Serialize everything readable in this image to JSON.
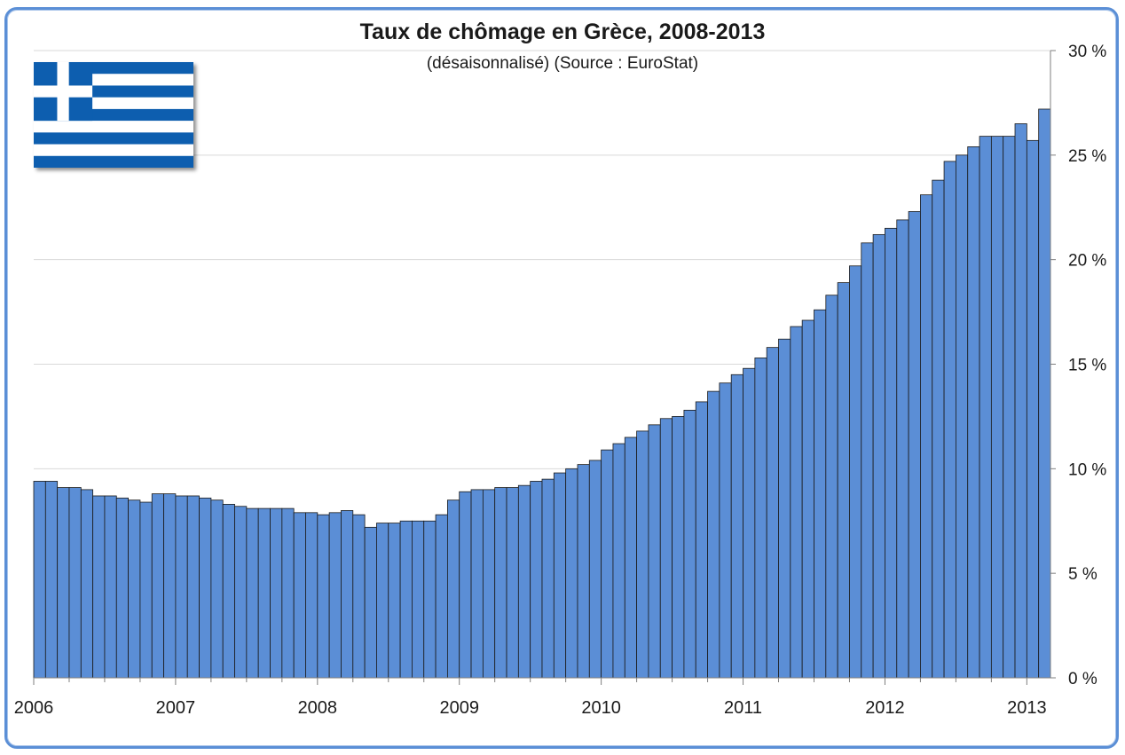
{
  "chart_data": {
    "type": "bar",
    "title": "Taux de chômage en Grèce, 2008-2013",
    "subtitle": "(désaisonnalisé) (Source : EuroStat)",
    "xlabel": "",
    "ylabel": "",
    "ylim": [
      0,
      30
    ],
    "y_ticks": [
      "0 %",
      "5 %",
      "10 %",
      "15 %",
      "20 %",
      "25 %",
      "30 %"
    ],
    "y_tick_values": [
      0,
      5,
      10,
      15,
      20,
      25,
      30
    ],
    "x_ticks": [
      "2006",
      "2007",
      "2008",
      "2009",
      "2010",
      "2011",
      "2012",
      "2013"
    ],
    "y_axis_side": "right",
    "grid": "horizontal",
    "bar_color": "#5b8ed6",
    "values": [
      9.4,
      9.4,
      9.1,
      9.1,
      9.0,
      8.7,
      8.7,
      8.6,
      8.5,
      8.4,
      8.8,
      8.8,
      8.7,
      8.7,
      8.6,
      8.5,
      8.3,
      8.2,
      8.1,
      8.1,
      8.1,
      8.1,
      7.9,
      7.9,
      7.8,
      7.9,
      8.0,
      7.8,
      7.2,
      7.4,
      7.4,
      7.5,
      7.5,
      7.5,
      7.8,
      8.5,
      8.9,
      9.0,
      9.0,
      9.1,
      9.1,
      9.2,
      9.4,
      9.5,
      9.8,
      10.0,
      10.2,
      10.4,
      10.9,
      11.2,
      11.5,
      11.8,
      12.1,
      12.4,
      12.5,
      12.8,
      13.2,
      13.7,
      14.1,
      14.5,
      14.8,
      15.3,
      15.8,
      16.2,
      16.8,
      17.1,
      17.6,
      18.3,
      18.9,
      19.7,
      20.8,
      21.2,
      21.5,
      21.9,
      22.3,
      23.1,
      23.8,
      24.7,
      25.0,
      25.4,
      25.9,
      25.9,
      25.9,
      26.5,
      25.7,
      27.2
    ]
  },
  "flag": {
    "name": "greece-flag-icon",
    "blue": "#0d5eaf",
    "white": "#ffffff"
  }
}
